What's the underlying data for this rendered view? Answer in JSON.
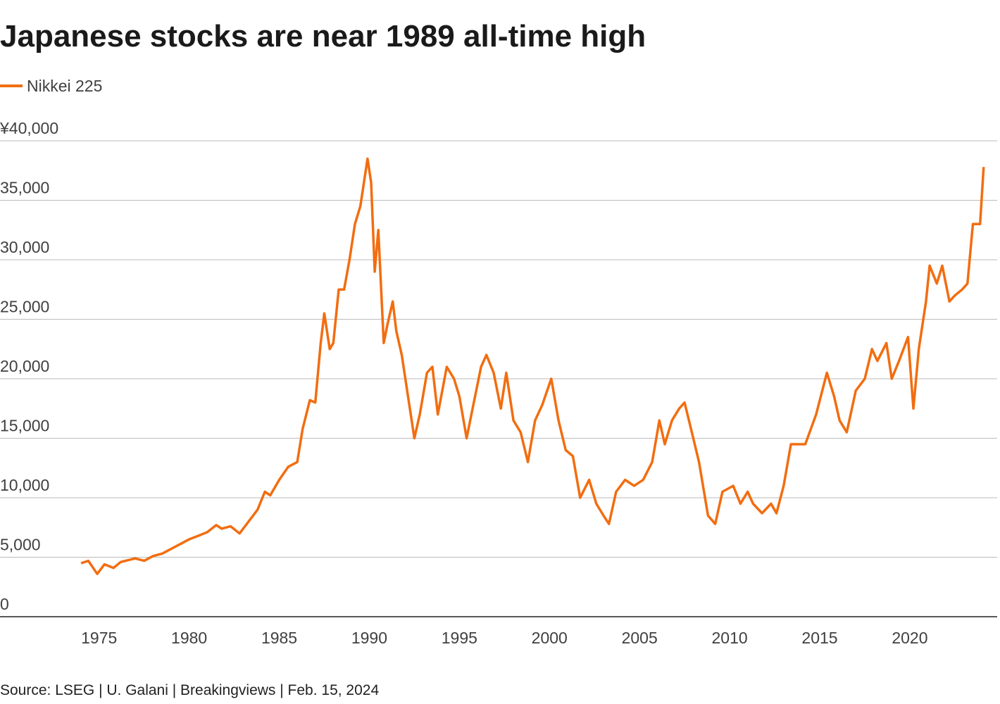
{
  "chart_data": {
    "type": "line",
    "title": "Japanese stocks are near 1989 all-time high",
    "source": "Source: LSEG | U. Galani | Breakingviews | Feb. 15, 2024",
    "x": [
      1974.0,
      1974.4,
      1974.9,
      1975.3,
      1975.8,
      1976.2,
      1977.0,
      1977.5,
      1978.0,
      1978.5,
      1979.0,
      1979.5,
      1980.0,
      1980.5,
      1981.0,
      1981.5,
      1981.8,
      1982.3,
      1982.8,
      1983.3,
      1983.8,
      1984.2,
      1984.5,
      1985.0,
      1985.5,
      1986.0,
      1986.3,
      1986.7,
      1987.0,
      1987.3,
      1987.5,
      1987.8,
      1988.0,
      1988.3,
      1988.6,
      1988.9,
      1989.2,
      1989.5,
      1989.9,
      1990.1,
      1990.3,
      1990.5,
      1990.8,
      1991.0,
      1991.3,
      1991.5,
      1991.8,
      1992.2,
      1992.5,
      1992.8,
      1993.2,
      1993.5,
      1993.8,
      1994.3,
      1994.7,
      1995.0,
      1995.4,
      1995.8,
      1996.2,
      1996.5,
      1996.9,
      1997.3,
      1997.6,
      1998.0,
      1998.4,
      1998.8,
      1999.2,
      1999.6,
      2000.1,
      2000.5,
      2000.9,
      2001.3,
      2001.7,
      2002.2,
      2002.6,
      2003.0,
      2003.3,
      2003.7,
      2004.2,
      2004.7,
      2005.2,
      2005.7,
      2006.1,
      2006.4,
      2006.8,
      2007.2,
      2007.5,
      2007.9,
      2008.3,
      2008.8,
      2009.2,
      2009.6,
      2010.2,
      2010.6,
      2011.0,
      2011.3,
      2011.8,
      2012.3,
      2012.6,
      2013.0,
      2013.4,
      2013.8,
      2014.2,
      2014.8,
      2015.4,
      2015.8,
      2016.1,
      2016.5,
      2017.0,
      2017.5,
      2017.9,
      2018.2,
      2018.7,
      2019.0,
      2019.4,
      2019.9,
      2020.2,
      2020.5,
      2020.9,
      2021.1,
      2021.5,
      2021.8,
      2022.2,
      2022.5,
      2022.9,
      2023.2,
      2023.5,
      2023.9,
      2024.1
    ],
    "series": [
      {
        "name": "Nikkei 225",
        "color": "#f26d10",
        "values": [
          4500,
          4700,
          3600,
          4400,
          4100,
          4600,
          4900,
          4700,
          5100,
          5300,
          5700,
          6100,
          6500,
          6800,
          7100,
          7700,
          7400,
          7600,
          7000,
          8000,
          9000,
          10500,
          10200,
          11500,
          12600,
          13000,
          15800,
          18200,
          18000,
          23000,
          25500,
          22500,
          23000,
          27500,
          27500,
          30000,
          33000,
          34500,
          38500,
          36500,
          29000,
          32500,
          23000,
          24500,
          26500,
          24000,
          22000,
          18000,
          15000,
          17000,
          20500,
          21000,
          17000,
          21000,
          20000,
          18500,
          15000,
          18000,
          21000,
          22000,
          20500,
          17500,
          20500,
          16500,
          15500,
          13000,
          16500,
          17800,
          20000,
          16500,
          14000,
          13500,
          10000,
          11500,
          9500,
          8500,
          7800,
          10500,
          11500,
          11000,
          11500,
          13000,
          16500,
          14500,
          16500,
          17500,
          18000,
          15500,
          13000,
          8500,
          7800,
          10500,
          11000,
          9500,
          10500,
          9500,
          8700,
          9500,
          8700,
          11000,
          14500,
          14500,
          14500,
          17000,
          20500,
          18500,
          16500,
          15500,
          19000,
          20000,
          22500,
          21500,
          23000,
          20000,
          21500,
          23500,
          17500,
          22500,
          26500,
          29500,
          28000,
          29500,
          26500,
          27000,
          27500,
          28000,
          33000,
          33000,
          37800
        ]
      }
    ],
    "xlim": [
      1969.5,
      2024.85
    ],
    "xticks": [
      1975,
      1980,
      1985,
      1990,
      1995,
      2000,
      2005,
      2010,
      2015,
      2020
    ],
    "ylim": [
      0,
      40000
    ],
    "yticks": [
      0,
      {
        "value": 5000,
        "label": "5,000"
      },
      {
        "value": 10000,
        "label": "10,000"
      },
      {
        "value": 15000,
        "label": "15,000"
      },
      {
        "value": 20000,
        "label": "20,000"
      },
      {
        "value": 25000,
        "label": "25,000"
      },
      {
        "value": 30000,
        "label": "30,000"
      },
      {
        "value": 35000,
        "label": "35,000"
      },
      {
        "value": 40000,
        "label": "¥40,000"
      }
    ],
    "grid": true
  }
}
